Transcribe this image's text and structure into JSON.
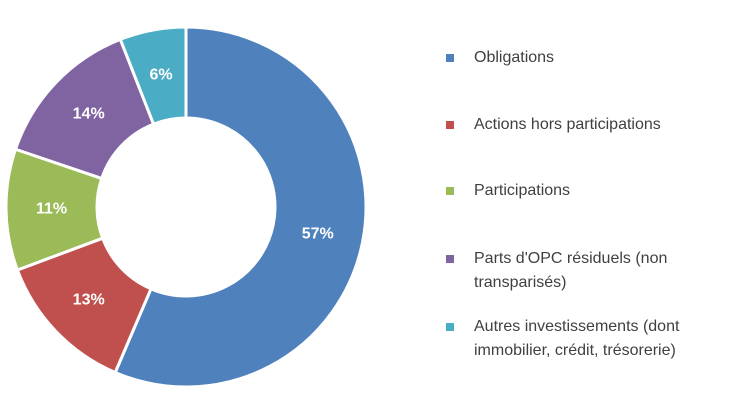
{
  "chart_data": {
    "type": "pie",
    "donut": true,
    "categories": [
      "Obligations",
      "Actions hors participations",
      "Participations",
      "Parts d'OPC résiduels (non transparisés)",
      "Autres investissements (dont immobilier, crédit, trésorerie)"
    ],
    "values": [
      57,
      13,
      11,
      14,
      6
    ],
    "value_labels": [
      "57%",
      "13%",
      "11%",
      "14%",
      "6%"
    ],
    "colors": [
      "#4f81bd",
      "#c0504d",
      "#9bbb59",
      "#8064a2",
      "#4bacc6"
    ],
    "start": "top, clockwise",
    "legend_position": "right"
  },
  "legend": {
    "items": [
      {
        "label": "Obligations",
        "color": "#4f81bd"
      },
      {
        "label": "Actions hors participations",
        "color": "#c0504d"
      },
      {
        "label": "Participations",
        "color": "#9bbb59"
      },
      {
        "label": "Parts d'OPC résiduels (non transparisés)",
        "color": "#8064a2"
      },
      {
        "label": "Autres investissements (dont immobilier, crédit, trésorerie)",
        "color": "#4bacc6"
      }
    ]
  }
}
